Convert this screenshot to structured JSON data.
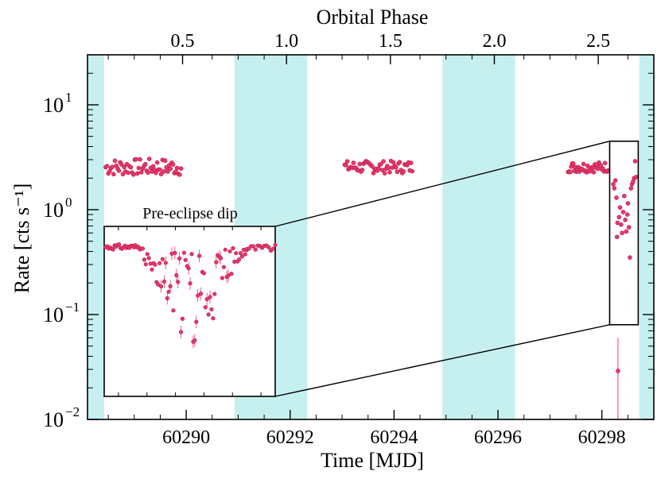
{
  "chart_data": {
    "type": "scatter",
    "title": "",
    "xlabel": "Time [MJD]",
    "ylabel": "Rate [cts s⁻¹]",
    "x2label": "Orbital Phase",
    "xlim": [
      60288.1,
      60299.0
    ],
    "ylim": [
      0.01,
      30
    ],
    "y_scale": "log",
    "grid": false,
    "x_ticks": [
      60290,
      60292,
      60294,
      60296,
      60298
    ],
    "x_tick_labels": [
      "60290",
      "60292",
      "60294",
      "60296",
      "60298"
    ],
    "x2_ticks": [
      0.5,
      1.0,
      1.5,
      2.0,
      2.5
    ],
    "x2_tick_labels": [
      "0.5",
      "1.0",
      "1.5",
      "2.0",
      "2.5"
    ],
    "x2_tick_mjd": [
      60289.93,
      60291.93,
      60293.93,
      60295.93,
      60297.93
    ],
    "y_tick_labels": [
      {
        "base": "10",
        "exp": "−2",
        "value": 0.01
      },
      {
        "base": "10",
        "exp": "−1",
        "value": 0.1
      },
      {
        "base": "10",
        "exp": "0",
        "value": 1
      },
      {
        "base": "10",
        "exp": "1",
        "value": 10
      }
    ],
    "eclipse_bands": [
      [
        60288.1,
        60288.42
      ],
      [
        60290.93,
        60292.33
      ],
      [
        60294.93,
        60296.33
      ],
      [
        60298.72,
        60299.0
      ]
    ],
    "colors": {
      "points": "#e8396b",
      "points_edge": "#c41e52",
      "bands": "#c6eff0"
    },
    "series": [
      {
        "segments": [
          {
            "x_start": 60288.45,
            "x_end": 60289.9,
            "n": 58,
            "level": 2.55,
            "scatter": 0.08
          },
          {
            "x_start": 60293.05,
            "x_end": 60294.35,
            "n": 55,
            "level": 2.55,
            "scatter": 0.06
          },
          {
            "x_start": 60297.35,
            "x_end": 60298.12,
            "n": 40,
            "level": 2.55,
            "scatter": 0.05
          }
        ],
        "dip_points": [
          {
            "x": 60298.22,
            "y": 1.75
          },
          {
            "x": 60298.24,
            "y": 1.6
          },
          {
            "x": 60298.26,
            "y": 1.9
          },
          {
            "x": 60298.28,
            "y": 1.3
          },
          {
            "x": 60298.29,
            "y": 0.55
          },
          {
            "x": 60298.3,
            "y": 0.75
          },
          {
            "x": 60298.31,
            "y": 0.029,
            "yerr_lo": 0.018,
            "yerr_hi": 0.06
          },
          {
            "x": 60298.33,
            "y": 0.85
          },
          {
            "x": 60298.35,
            "y": 1.05
          },
          {
            "x": 60298.37,
            "y": 0.72
          },
          {
            "x": 60298.39,
            "y": 0.6
          },
          {
            "x": 60298.41,
            "y": 0.95
          },
          {
            "x": 60298.43,
            "y": 1.35
          },
          {
            "x": 60298.45,
            "y": 0.8
          },
          {
            "x": 60298.47,
            "y": 0.62
          },
          {
            "x": 60298.49,
            "y": 0.9
          },
          {
            "x": 60298.5,
            "y": 1.15
          },
          {
            "x": 60298.52,
            "y": 0.68
          },
          {
            "x": 60298.54,
            "y": 0.35
          },
          {
            "x": 60298.56,
            "y": 1.6
          },
          {
            "x": 60298.58,
            "y": 1.75
          },
          {
            "x": 60298.6,
            "y": 1.85
          },
          {
            "x": 60298.62,
            "y": 2.0
          },
          {
            "x": 60298.64,
            "y": 2.9
          },
          {
            "x": 60298.66,
            "y": 2.05
          }
        ]
      }
    ],
    "zoom_box": {
      "x": [
        60298.15,
        60298.7
      ],
      "y": [
        0.08,
        4.5
      ]
    },
    "inset": {
      "label": "Pre-eclipse dip",
      "x": [
        60298.1,
        60298.7
      ],
      "y": [
        0.012,
        4.5
      ]
    }
  }
}
